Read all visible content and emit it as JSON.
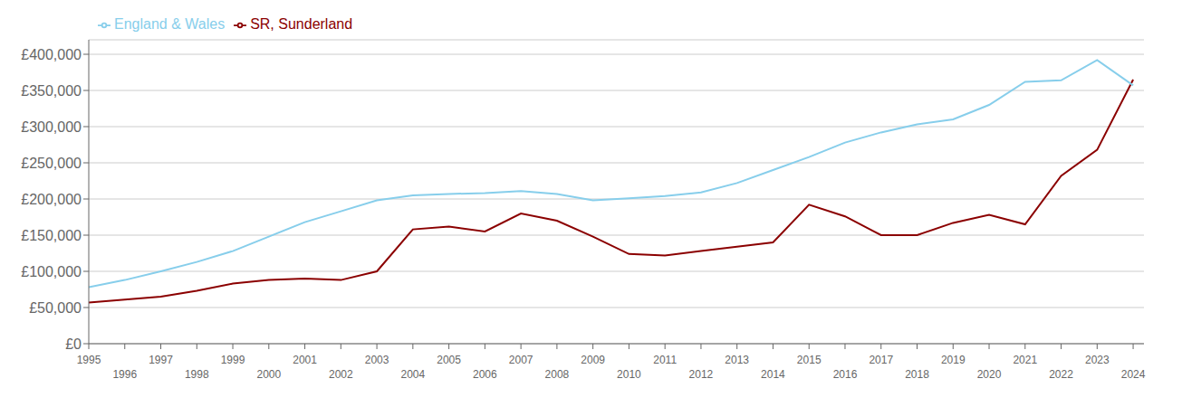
{
  "chart_data": {
    "type": "line",
    "x": [
      1995,
      1996,
      1997,
      1998,
      1999,
      2000,
      2001,
      2002,
      2003,
      2004,
      2005,
      2006,
      2007,
      2008,
      2009,
      2010,
      2011,
      2012,
      2013,
      2014,
      2015,
      2016,
      2017,
      2018,
      2019,
      2020,
      2021,
      2022,
      2023,
      2024
    ],
    "series": [
      {
        "name": "SR, Sunderland",
        "color": "#8B0000",
        "values": [
          57000,
          61000,
          65000,
          73000,
          83000,
          88000,
          90000,
          88000,
          100000,
          158000,
          162000,
          155000,
          180000,
          170000,
          148000,
          124000,
          122000,
          128000,
          134000,
          140000,
          192000,
          176000,
          150000,
          150000,
          167000,
          178000,
          165000,
          232000,
          268000,
          365000
        ]
      },
      {
        "name": "England & Wales",
        "color": "#87CEEB",
        "values": [
          78000,
          88000,
          100000,
          113000,
          128000,
          148000,
          168000,
          183000,
          198000,
          205000,
          207000,
          208000,
          211000,
          207000,
          198000,
          201000,
          204000,
          209000,
          222000,
          240000,
          258000,
          278000,
          292000,
          303000,
          310000,
          330000,
          362000,
          364000,
          392000,
          357000
        ]
      }
    ],
    "xlim": [
      1995,
      2024.3
    ],
    "xticks": [
      1995,
      1996,
      1997,
      1998,
      1999,
      2000,
      2001,
      2002,
      2003,
      2004,
      2005,
      2006,
      2007,
      2008,
      2009,
      2010,
      2011,
      2012,
      2013,
      2014,
      2015,
      2016,
      2017,
      2018,
      2019,
      2020,
      2021,
      2022,
      2023,
      2024
    ],
    "ylim": [
      0,
      420000
    ],
    "yticks": [
      {
        "value": 0,
        "label": "£0"
      },
      {
        "value": 50000,
        "label": "£50,000"
      },
      {
        "value": 100000,
        "label": "£100,000"
      },
      {
        "value": 150000,
        "label": "£150,000"
      },
      {
        "value": 200000,
        "label": "£200,000"
      },
      {
        "value": 250000,
        "label": "£250,000"
      },
      {
        "value": 300000,
        "label": "£300,000"
      },
      {
        "value": 350000,
        "label": "£350,000"
      },
      {
        "value": 400000,
        "label": "£400,000"
      }
    ],
    "grid": true,
    "legend": "upper left"
  }
}
